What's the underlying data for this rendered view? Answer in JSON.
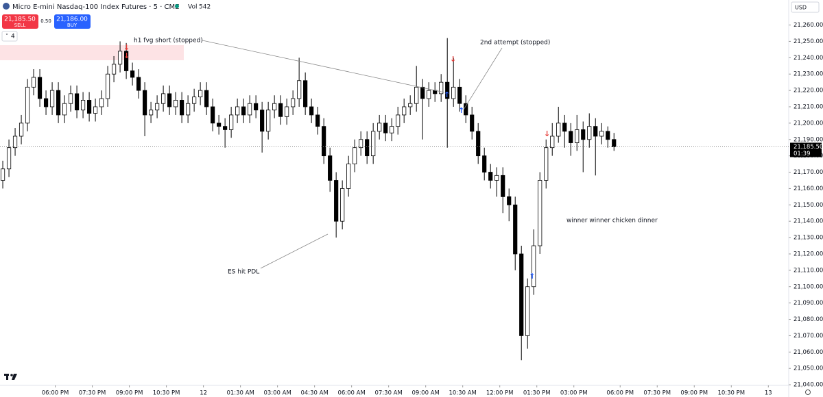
{
  "chart_data": {
    "type": "candlestick",
    "title": "Micro E-mini Nasdaq-100 Index Futures · 5 · CME",
    "volume_label": "Vol",
    "volume": 542,
    "sell_price": "21,185.50",
    "sell_label": "SELL",
    "spread": "0.50",
    "buy_price": "21,186.00",
    "buy_label": "BUY",
    "indicator_count": "4",
    "currency": "USD",
    "last_price_label": "21,185.50",
    "countdown": "01:39",
    "annotations": [
      "h1 fvg short (stopped)",
      "2nd attempt (stopped)",
      "ES hit PDL",
      "winner winner chicken dinner"
    ],
    "up_color": "#ffffff",
    "down_color": "#000000",
    "open": [
      21165,
      21172,
      21185,
      21192,
      21200,
      21222,
      21228,
      21215,
      21210,
      21220,
      21205,
      21212,
      21218,
      21208,
      21214,
      21206,
      21210,
      21215,
      21230,
      21236,
      21244,
      21232,
      21228,
      21220,
      21205,
      21208,
      21212,
      21218,
      21210,
      21214,
      21205,
      21212,
      21216,
      21220,
      21210,
      21200,
      21198,
      21196,
      21205,
      21210,
      21205,
      21212,
      21208,
      21195,
      21208,
      21212,
      21204,
      21210,
      21215,
      21226,
      21210,
      21205,
      21198,
      21180,
      21165,
      21140,
      21160,
      21175,
      21185,
      21190,
      21180,
      21195,
      21200,
      21194,
      21198,
      21205,
      21210,
      21212,
      21222,
      21215,
      21220,
      21218,
      21225,
      21215,
      21222,
      21212,
      21205,
      21195,
      21180,
      21170,
      21165,
      21168,
      21155,
      21150,
      21120,
      21070,
      21100,
      21125,
      21165,
      21185,
      21192,
      21200,
      21195,
      21188,
      21196,
      21190,
      21198,
      21192,
      21195,
      21190
    ],
    "high": [
      21177,
      21190,
      21197,
      21205,
      21227,
      21233,
      21233,
      21220,
      21225,
      21225,
      21217,
      21223,
      21223,
      21219,
      21219,
      21215,
      21220,
      21235,
      21241,
      21250,
      21249,
      21237,
      21233,
      21225,
      21213,
      21217,
      21223,
      21223,
      21219,
      21219,
      21217,
      21221,
      21225,
      21225,
      21215,
      21205,
      21203,
      21210,
      21215,
      21215,
      21217,
      21217,
      21213,
      21213,
      21217,
      21217,
      21215,
      21220,
      21240,
      21231,
      21215,
      21210,
      21203,
      21185,
      21170,
      21165,
      21180,
      21190,
      21195,
      21195,
      21200,
      21205,
      21205,
      21203,
      21210,
      21215,
      21217,
      21235,
      21227,
      21225,
      21225,
      21230,
      21252,
      21240,
      21227,
      21217,
      21210,
      21200,
      21185,
      21175,
      21173,
      21173,
      21160,
      21155,
      21125,
      21105,
      21135,
      21170,
      21190,
      21200,
      21210,
      21205,
      21200,
      21205,
      21201,
      21206,
      21203,
      21200,
      21198,
      21194
    ],
    "low": [
      21160,
      21167,
      21180,
      21187,
      21195,
      21217,
      21210,
      21205,
      21205,
      21200,
      21200,
      21207,
      21203,
      21203,
      21201,
      21201,
      21205,
      21210,
      21225,
      21231,
      21227,
      21223,
      21215,
      21192,
      21200,
      21203,
      21207,
      21205,
      21205,
      21200,
      21200,
      21207,
      21211,
      21205,
      21195,
      21193,
      21185,
      21191,
      21200,
      21200,
      21200,
      21203,
      21182,
      21190,
      21203,
      21199,
      21199,
      21205,
      21210,
      21205,
      21200,
      21193,
      21175,
      21158,
      21130,
      21135,
      21155,
      21170,
      21180,
      21175,
      21175,
      21190,
      21189,
      21189,
      21193,
      21200,
      21205,
      21207,
      21190,
      21210,
      21213,
      21213,
      21185,
      21210,
      21207,
      21200,
      21190,
      21175,
      21165,
      21160,
      21155,
      21145,
      21140,
      21110,
      21055,
      21062,
      21095,
      21120,
      21160,
      21180,
      21188,
      21185,
      21180,
      21183,
      21170,
      21185,
      21168,
      21187,
      21185,
      21183
    ],
    "close": [
      21172,
      21185,
      21192,
      21200,
      21222,
      21228,
      21215,
      21210,
      21220,
      21205,
      21212,
      21218,
      21208,
      21214,
      21206,
      21210,
      21215,
      21230,
      21236,
      21244,
      21232,
      21228,
      21220,
      21205,
      21208,
      21212,
      21218,
      21210,
      21214,
      21205,
      21212,
      21216,
      21220,
      21210,
      21200,
      21198,
      21196,
      21205,
      21210,
      21205,
      21212,
      21208,
      21195,
      21208,
      21212,
      21204,
      21210,
      21215,
      21226,
      21210,
      21205,
      21198,
      21180,
      21165,
      21140,
      21160,
      21175,
      21185,
      21190,
      21180,
      21195,
      21200,
      21194,
      21198,
      21205,
      21210,
      21212,
      21222,
      21215,
      21220,
      21218,
      21225,
      21215,
      21222,
      21212,
      21205,
      21195,
      21180,
      21170,
      21165,
      21168,
      21155,
      21150,
      21120,
      21070,
      21100,
      21125,
      21165,
      21185,
      21192,
      21200,
      21195,
      21188,
      21196,
      21190,
      21198,
      21192,
      21195,
      21190,
      21185.5
    ],
    "xlim": [
      -0.45,
      127.3
    ],
    "xticks": [
      {
        "value": 8.5,
        "label": "06:00 PM"
      },
      {
        "value": 14.5,
        "label": "07:30 PM"
      },
      {
        "value": 20.5,
        "label": "09:00 PM"
      },
      {
        "value": 26.5,
        "label": "10:30 PM"
      },
      {
        "value": 32.5,
        "label": "12"
      },
      {
        "value": 38.5,
        "label": "01:30 AM"
      },
      {
        "value": 44.5,
        "label": "03:00 AM"
      },
      {
        "value": 50.5,
        "label": "04:30 AM"
      },
      {
        "value": 56.5,
        "label": "06:00 AM"
      },
      {
        "value": 62.5,
        "label": "07:30 AM"
      },
      {
        "value": 68.5,
        "label": "09:00 AM"
      },
      {
        "value": 74.5,
        "label": "10:30 AM"
      },
      {
        "value": 80.5,
        "label": "12:00 PM"
      },
      {
        "value": 86.5,
        "label": "01:30 PM"
      },
      {
        "value": 92.5,
        "label": "03:00 PM"
      },
      {
        "value": 100,
        "label": "06:00 PM"
      },
      {
        "value": 106,
        "label": "07:30 PM"
      },
      {
        "value": 112,
        "label": "09:00 PM"
      },
      {
        "value": 118,
        "label": "10:30 PM"
      },
      {
        "value": 124,
        "label": "13"
      }
    ],
    "ylim": [
      21032.5,
      21275.3
    ],
    "yticks": [
      {
        "value": 21040,
        "label": "21,040.00"
      },
      {
        "value": 21050,
        "label": "21,050.00"
      },
      {
        "value": 21060,
        "label": "21,060.00"
      },
      {
        "value": 21070,
        "label": "21,070.00"
      },
      {
        "value": 21080,
        "label": "21,080.00"
      },
      {
        "value": 21090,
        "label": "21,090.00"
      },
      {
        "value": 21100,
        "label": "21,100.00"
      },
      {
        "value": 21110,
        "label": "21,110.00"
      },
      {
        "value": 21120,
        "label": "21,120.00"
      },
      {
        "value": 21130,
        "label": "21,130.00"
      },
      {
        "value": 21140,
        "label": "21,140.00"
      },
      {
        "value": 21150,
        "label": "21,150.00"
      },
      {
        "value": 21160,
        "label": "21,160.00"
      },
      {
        "value": 21170,
        "label": "21,170.00"
      },
      {
        "value": 21180,
        "label": "21,180.00"
      },
      {
        "value": 21190,
        "label": "21,190.00"
      },
      {
        "value": 21200,
        "label": "21,200.00"
      },
      {
        "value": 21210,
        "label": "21,210.00"
      },
      {
        "value": 21220,
        "label": "21,220.00"
      },
      {
        "value": 21230,
        "label": "21,230.00"
      },
      {
        "value": 21240,
        "label": "21,240.00"
      },
      {
        "value": 21250,
        "label": "21,250.00"
      },
      {
        "value": 21260,
        "label": "21,260.00"
      }
    ]
  }
}
